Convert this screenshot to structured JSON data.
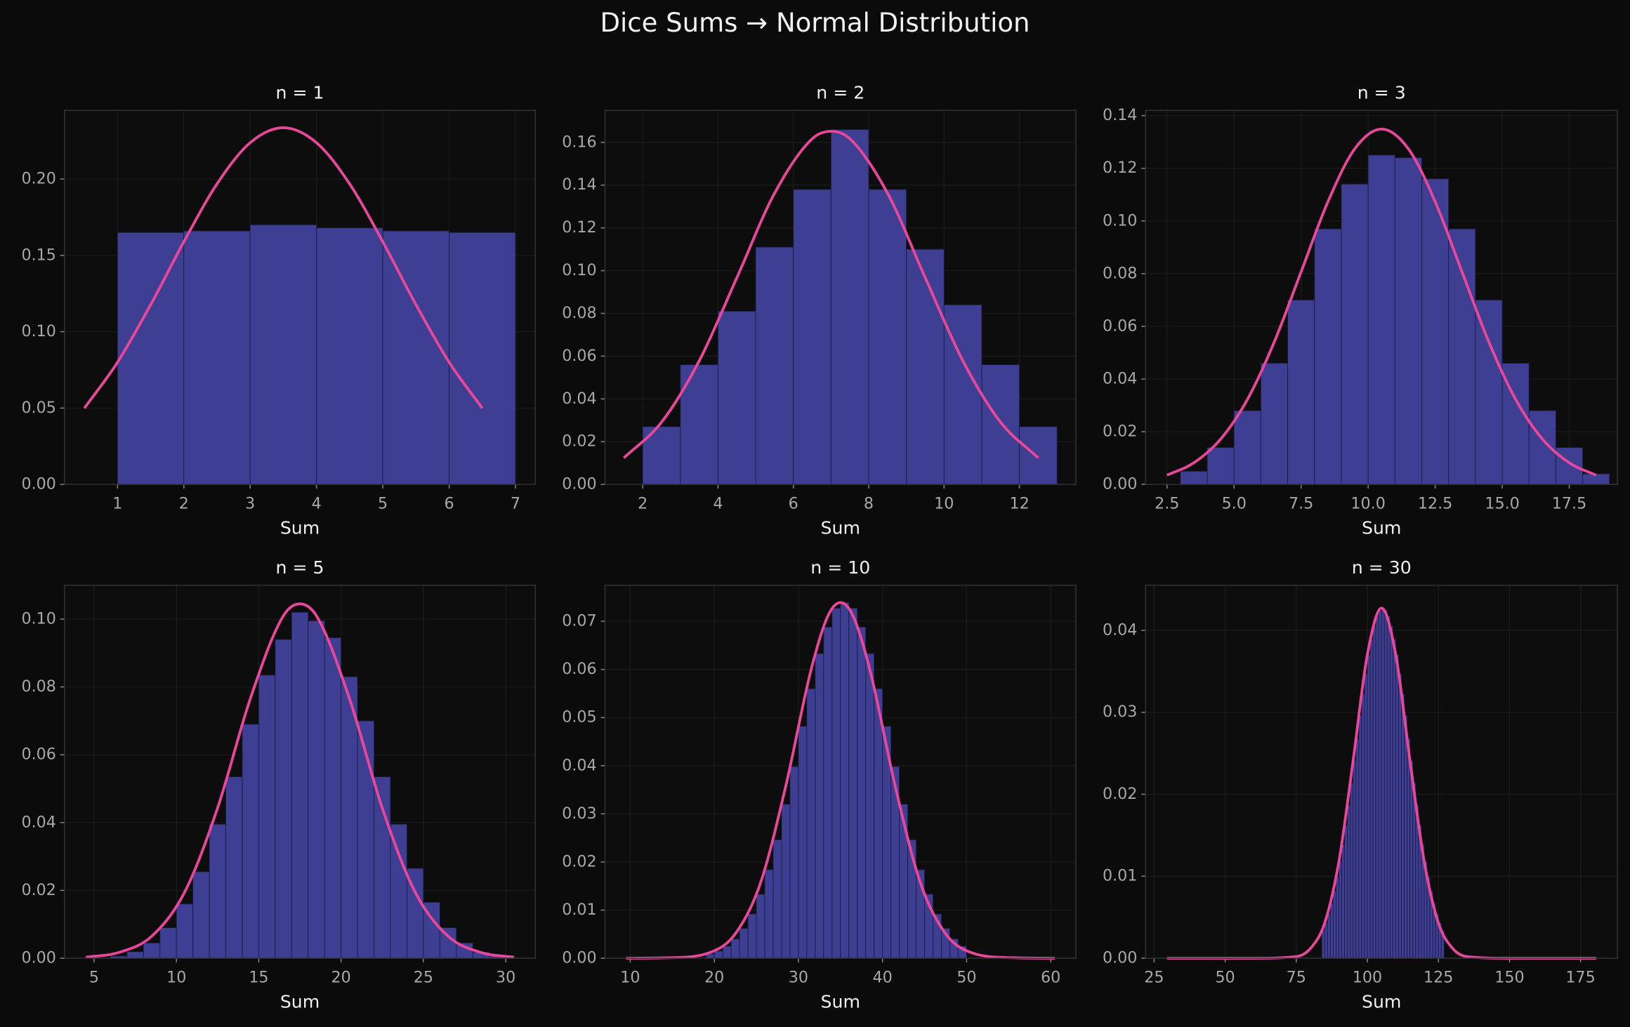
{
  "title": "Dice Sums → Normal Distribution",
  "chart_data": [
    {
      "type": "histogram",
      "title": "n = 1",
      "xlabel": "Sum",
      "color": "#3e3e92",
      "grid": true,
      "bins": [
        1,
        2,
        3,
        4,
        5,
        6,
        7
      ],
      "values": [
        0.165,
        0.166,
        0.17,
        0.168,
        0.166,
        0.165
      ],
      "curve": {
        "color": "#e8479a",
        "x": [
          0.5,
          1,
          1.5,
          2,
          2.5,
          3,
          3.5,
          4,
          4.5,
          5,
          5.5,
          6,
          6.5
        ],
        "values": [
          0.0499,
          0.08,
          0.1177,
          0.1589,
          0.1968,
          0.2238,
          0.2336,
          0.2238,
          0.1968,
          0.1589,
          0.1177,
          0.08,
          0.0499
        ]
      },
      "xlim": [
        0.2,
        7.3
      ],
      "xticks": [
        1,
        2,
        3,
        4,
        5,
        6,
        7
      ],
      "ylim": [
        0,
        0.245
      ],
      "yticks": [
        {
          "value": 0,
          "label": "0.00"
        },
        0.05,
        {
          "value": 0.1,
          "label": "0.10"
        },
        0.15,
        {
          "value": 0.2,
          "label": "0.20"
        }
      ]
    },
    {
      "type": "histogram",
      "title": "n = 2",
      "xlabel": "Sum",
      "color": "#3e3e92",
      "grid": true,
      "bins": [
        2,
        3,
        4,
        5,
        6,
        7,
        8,
        9,
        10,
        11,
        12,
        13
      ],
      "values": [
        0.027,
        0.056,
        0.081,
        0.111,
        0.138,
        0.166,
        0.138,
        0.11,
        0.084,
        0.056,
        0.027
      ],
      "curve": {
        "color": "#e8479a",
        "x": [
          1.5,
          2.5,
          3.5,
          4.5,
          5.5,
          6.5,
          7,
          7.5,
          8.5,
          9.5,
          10.5,
          11.5,
          12.5
        ],
        "values": [
          0.0124,
          0.0291,
          0.0578,
          0.0967,
          0.1362,
          0.1617,
          0.1652,
          0.1617,
          0.1362,
          0.0967,
          0.0578,
          0.0291,
          0.0124
        ]
      },
      "xlim": [
        1.0,
        13.5
      ],
      "xticks": [
        2,
        4,
        6,
        8,
        10,
        12
      ],
      "ylim": [
        0,
        0.175
      ],
      "yticks": [
        {
          "value": 0,
          "label": "0.00"
        },
        0.02,
        0.04,
        0.06,
        0.08,
        {
          "value": 0.1,
          "label": "0.10"
        },
        0.12,
        0.14,
        0.16
      ]
    },
    {
      "type": "histogram",
      "title": "n = 3",
      "xlabel": "Sum",
      "color": "#3e3e92",
      "grid": true,
      "bins": [
        3,
        4,
        5,
        6,
        7,
        8,
        9,
        10,
        11,
        12,
        13,
        14,
        15,
        16,
        17,
        18,
        19
      ],
      "values": [
        0.005,
        0.014,
        0.028,
        0.046,
        0.07,
        0.097,
        0.114,
        0.125,
        0.124,
        0.116,
        0.097,
        0.07,
        0.046,
        0.028,
        0.014,
        0.004
      ],
      "curve": {
        "color": "#e8479a",
        "x": [
          2.5,
          3.5,
          4.5,
          5.5,
          6.5,
          7.5,
          8.5,
          9.5,
          10.5,
          11.5,
          12.5,
          13.5,
          14.5,
          15.5,
          16.5,
          17.5,
          18.5
        ],
        "values": [
          0.0035,
          0.0082,
          0.0172,
          0.0323,
          0.0541,
          0.0807,
          0.1073,
          0.1274,
          0.1349,
          0.1274,
          0.1073,
          0.0807,
          0.0541,
          0.0323,
          0.0172,
          0.0082,
          0.0035
        ]
      },
      "xlim": [
        1.7,
        19.3
      ],
      "xticks": [
        2.5,
        {
          "value": 5,
          "label": "5.0"
        },
        7.5,
        {
          "value": 10,
          "label": "10.0"
        },
        12.5,
        {
          "value": 15,
          "label": "15.0"
        },
        17.5
      ],
      "ylim": [
        0,
        0.142
      ],
      "yticks": [
        {
          "value": 0,
          "label": "0.00"
        },
        0.02,
        0.04,
        0.06,
        0.08,
        {
          "value": 0.1,
          "label": "0.10"
        },
        0.12,
        0.14
      ]
    },
    {
      "type": "histogram",
      "title": "n = 5",
      "xlabel": "Sum",
      "color": "#3e3e92",
      "grid": true,
      "bins": [
        5,
        6,
        7,
        8,
        9,
        10,
        11,
        12,
        13,
        14,
        15,
        16,
        17,
        18,
        19,
        20,
        21,
        22,
        23,
        24,
        25,
        26,
        27,
        28,
        29,
        30
      ],
      "values": [
        0.0001,
        0.0006,
        0.0019,
        0.0045,
        0.009,
        0.016,
        0.0255,
        0.0395,
        0.0535,
        0.069,
        0.0835,
        0.094,
        0.102,
        0.0995,
        0.0945,
        0.083,
        0.07,
        0.0535,
        0.0395,
        0.0265,
        0.0165,
        0.009,
        0.0045,
        0.0018,
        0.0006
      ],
      "curve": {
        "color": "#e8479a",
        "x": [
          4.5,
          6.5,
          8.5,
          10.5,
          12.5,
          14.5,
          16.5,
          17.5,
          18.5,
          20.5,
          22.5,
          24.5,
          26.5,
          28.5,
          30.5
        ],
        "values": [
          0.0003,
          0.0017,
          0.0065,
          0.0195,
          0.0443,
          0.0767,
          0.101,
          0.1045,
          0.101,
          0.0767,
          0.0443,
          0.0195,
          0.0065,
          0.0017,
          0.0003
        ]
      },
      "xlim": [
        3.2,
        31.8
      ],
      "xticks": [
        5,
        10,
        15,
        20,
        25,
        30
      ],
      "ylim": [
        0,
        0.11
      ],
      "yticks": [
        {
          "value": 0,
          "label": "0.00"
        },
        0.02,
        0.04,
        0.06,
        0.08,
        {
          "value": 0.1,
          "label": "0.10"
        }
      ]
    },
    {
      "type": "histogram",
      "title": "n = 10",
      "xlabel": "Sum",
      "color": "#3e3e92",
      "grid": true,
      "bins": [
        19,
        20,
        21,
        22,
        23,
        24,
        25,
        26,
        27,
        28,
        29,
        30,
        31,
        32,
        33,
        34,
        35,
        36,
        37,
        38,
        39,
        40,
        41,
        42,
        43,
        44,
        45,
        46,
        47,
        48,
        49,
        50
      ],
      "values": [
        0.0009,
        0.0015,
        0.0025,
        0.004,
        0.0062,
        0.0092,
        0.0133,
        0.0184,
        0.0246,
        0.032,
        0.0398,
        0.0482,
        0.056,
        0.0633,
        0.0688,
        0.0727,
        0.0739,
        0.0727,
        0.0688,
        0.0633,
        0.056,
        0.0482,
        0.0398,
        0.032,
        0.0246,
        0.0184,
        0.0133,
        0.0092,
        0.0062,
        0.004,
        0.0025
      ],
      "curve": {
        "color": "#e8479a",
        "x": [
          9.5,
          14.5,
          19.5,
          22.5,
          25.5,
          28.5,
          31.5,
          33.5,
          35,
          36.5,
          38.5,
          41.5,
          44.5,
          47.5,
          50.5,
          55.5,
          60.5
        ],
        "values": [
          0,
          0.0001,
          0.0012,
          0.0051,
          0.0157,
          0.0358,
          0.0599,
          0.0711,
          0.0739,
          0.0711,
          0.0599,
          0.0358,
          0.0157,
          0.0051,
          0.0012,
          0.0001,
          0
        ]
      },
      "xlim": [
        7,
        63
      ],
      "xticks": [
        10,
        20,
        30,
        40,
        50,
        60
      ],
      "ylim": [
        0,
        0.0775
      ],
      "yticks": [
        {
          "value": 0,
          "label": "0.00"
        },
        {
          "value": 0.01,
          "label": "0.01"
        },
        {
          "value": 0.02,
          "label": "0.02"
        },
        {
          "value": 0.03,
          "label": "0.03"
        },
        {
          "value": 0.04,
          "label": "0.04"
        },
        {
          "value": 0.05,
          "label": "0.05"
        },
        {
          "value": 0.06,
          "label": "0.06"
        },
        {
          "value": 0.07,
          "label": "0.07"
        }
      ]
    },
    {
      "type": "histogram",
      "title": "n = 30",
      "xlabel": "Sum",
      "color": "#3e3e92",
      "grid": true,
      "bins": [
        84,
        85,
        86,
        87,
        88,
        89,
        90,
        91,
        92,
        93,
        94,
        95,
        96,
        97,
        98,
        99,
        100,
        101,
        102,
        103,
        104,
        105,
        106,
        107,
        108,
        109,
        110,
        111,
        112,
        113,
        114,
        115,
        116,
        117,
        118,
        119,
        120,
        121,
        122,
        123,
        124,
        125,
        126,
        127
      ],
      "values": [
        0.0034,
        0.0043,
        0.0054,
        0.0067,
        0.0082,
        0.0099,
        0.0118,
        0.0139,
        0.0162,
        0.0187,
        0.0214,
        0.0241,
        0.0268,
        0.0296,
        0.0322,
        0.0347,
        0.037,
        0.0389,
        0.0405,
        0.0417,
        0.0424,
        0.0427,
        0.0424,
        0.0417,
        0.0405,
        0.0389,
        0.037,
        0.0347,
        0.0322,
        0.0296,
        0.0268,
        0.0241,
        0.0214,
        0.0187,
        0.0162,
        0.0139,
        0.0118,
        0.0099,
        0.0082,
        0.0067,
        0.0054,
        0.0043,
        0.0034
      ],
      "curve": {
        "color": "#e8479a",
        "x": [
          29.5,
          60,
          75,
          80,
          85,
          90,
          95,
          100,
          105,
          110,
          115,
          120,
          125,
          130,
          135,
          150,
          180.5
        ],
        "values": [
          0,
          0,
          0.0002,
          0.0012,
          0.0043,
          0.0118,
          0.0241,
          0.037,
          0.0427,
          0.037,
          0.0241,
          0.0118,
          0.0043,
          0.0012,
          0.0002,
          0,
          0
        ]
      },
      "xlim": [
        22,
        188
      ],
      "xticks": [
        25,
        50,
        75,
        100,
        125,
        150,
        175
      ],
      "ylim": [
        0,
        0.0455
      ],
      "yticks": [
        {
          "value": 0,
          "label": "0.00"
        },
        {
          "value": 0.01,
          "label": "0.01"
        },
        {
          "value": 0.02,
          "label": "0.02"
        },
        {
          "value": 0.03,
          "label": "0.03"
        },
        {
          "value": 0.04,
          "label": "0.04"
        }
      ]
    }
  ]
}
